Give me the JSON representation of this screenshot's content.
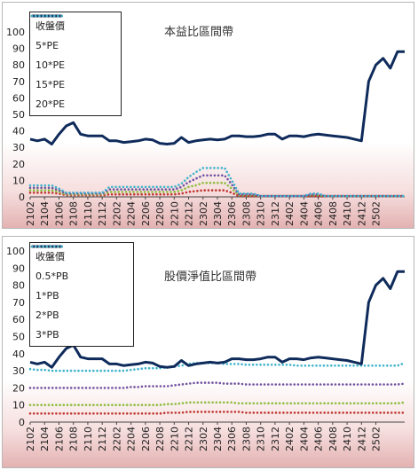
{
  "chart_data": [
    {
      "type": "line",
      "title": "本益比區間帶",
      "x_tick_labels": [
        "2102",
        "2104",
        "2106",
        "2108",
        "2110",
        "2112",
        "2202",
        "2204",
        "2206",
        "2208",
        "2210",
        "2212",
        "2302",
        "2304",
        "2306",
        "2308",
        "2310",
        "2312",
        "2402",
        "2404",
        "2406",
        "2408",
        "2410",
        "2412",
        "2502"
      ],
      "ylim": [
        0,
        100
      ],
      "y_ticks": [
        0,
        10,
        20,
        30,
        40,
        50,
        60,
        70,
        80,
        90,
        100
      ],
      "legend_position": "top-left",
      "series": [
        {
          "name": "收盤價",
          "color": "#0f2b5b",
          "style": "solid",
          "values": [
            35,
            34,
            35,
            32,
            38,
            43,
            45,
            38,
            37,
            37,
            37,
            34,
            34,
            33,
            33.5,
            34,
            35,
            34.5,
            32.5,
            32,
            32.5,
            36,
            33,
            34,
            34.5,
            35,
            34.5,
            35,
            37,
            37,
            36.5,
            36.5,
            37,
            38,
            38,
            35,
            37,
            37,
            36.5,
            37.5,
            38,
            37.5,
            37,
            36.5,
            36,
            35,
            34,
            70,
            80,
            84,
            78,
            88,
            88
          ]
        },
        {
          "name": "5*PE",
          "color": "#c0352f",
          "style": "dotted",
          "values": [
            2.5,
            2.5,
            2.5,
            2.5,
            2,
            1,
            1,
            1,
            1,
            1,
            1,
            1.5,
            1.5,
            1.5,
            1.5,
            1.5,
            1.5,
            1.5,
            1.5,
            1.5,
            1.5,
            2,
            3,
            3.5,
            4,
            4,
            4,
            4,
            2.5,
            0.5,
            0.5,
            0.5,
            0.5,
            0.5,
            0.5,
            0.5,
            0.5,
            0.5,
            0.5,
            0.5,
            0.5,
            0.5,
            0.5,
            0.5,
            0.5,
            0.5,
            0.5,
            0.5,
            0.5,
            0.5,
            0.5,
            0.5,
            0.5
          ]
        },
        {
          "name": "10*PE",
          "color": "#8cbd3f",
          "style": "dotted",
          "values": [
            4,
            4,
            4,
            4,
            3,
            1.5,
            1.5,
            1.5,
            1.5,
            1.5,
            1.5,
            3,
            3,
            3,
            3,
            3,
            3,
            3,
            3,
            3,
            3,
            4,
            6,
            7,
            8.5,
            8.5,
            8.5,
            8.5,
            5,
            1,
            1,
            1,
            0.5,
            0.5,
            0.5,
            0.5,
            0.5,
            0.5,
            0.5,
            1,
            1,
            0.5,
            0.5,
            0.5,
            0.5,
            0.5,
            0.5,
            0.5,
            0.5,
            0.5,
            0.5,
            0.5,
            0.5
          ]
        },
        {
          "name": "15*PE",
          "color": "#7052a0",
          "style": "dotted",
          "values": [
            5.5,
            5.5,
            5.5,
            5.5,
            4,
            2,
            2,
            2,
            2,
            2,
            2,
            4.5,
            4.5,
            4.5,
            4.5,
            4.5,
            4.5,
            4.5,
            4.5,
            4.5,
            4.5,
            6,
            9,
            11,
            13,
            13,
            13,
            13,
            7.5,
            1.5,
            1.5,
            1.5,
            0.5,
            0.5,
            0.5,
            0.5,
            0.5,
            0.5,
            0.5,
            1.5,
            1.5,
            0.5,
            0.5,
            0.5,
            0.5,
            0.5,
            0.5,
            0.5,
            0.5,
            0.5,
            0.5,
            0.5,
            0.5
          ]
        },
        {
          "name": "20*PE",
          "color": "#3fb3cc",
          "style": "dotted",
          "values": [
            7,
            7,
            7,
            7,
            5,
            2.5,
            2.5,
            2.5,
            2.5,
            2.5,
            2.5,
            6,
            6,
            6,
            6,
            6,
            6,
            6,
            6,
            6,
            6,
            8,
            12,
            15,
            17.5,
            17.5,
            17.5,
            17.5,
            10,
            2,
            2,
            2,
            0.5,
            0.5,
            0.5,
            0.5,
            0.5,
            0.5,
            0.5,
            2,
            2,
            0.5,
            0.5,
            0.5,
            0.5,
            0.5,
            0.5,
            0.5,
            0.5,
            0.5,
            0.5,
            0.5,
            0.5
          ]
        }
      ]
    },
    {
      "type": "line",
      "title": "股價淨值比區間帶",
      "x_tick_labels": [
        "2102",
        "2104",
        "2106",
        "2108",
        "2110",
        "2112",
        "2202",
        "2204",
        "2206",
        "2208",
        "2210",
        "2212",
        "2302",
        "2304",
        "2306",
        "2308",
        "2310",
        "2312",
        "2402",
        "2404",
        "2406",
        "2408",
        "2410",
        "2412",
        "2502"
      ],
      "ylim": [
        0,
        100
      ],
      "y_ticks": [
        0,
        10,
        20,
        30,
        40,
        50,
        60,
        70,
        80,
        90,
        100
      ],
      "legend_position": "top-left",
      "series": [
        {
          "name": "收盤價",
          "color": "#0f2b5b",
          "style": "solid",
          "values": [
            35,
            34,
            35,
            32,
            38,
            43,
            45,
            38,
            37,
            37,
            37,
            34,
            34,
            33,
            33.5,
            34,
            35,
            34.5,
            32.5,
            32,
            32.5,
            36,
            33,
            34,
            34.5,
            35,
            34.5,
            35,
            37,
            37,
            36.5,
            36.5,
            37,
            38,
            38,
            35,
            37,
            37,
            36.5,
            37.5,
            38,
            37.5,
            37,
            36.5,
            36,
            35,
            34,
            70,
            80,
            84,
            78,
            88,
            88
          ]
        },
        {
          "name": "0.5*PB",
          "color": "#c0352f",
          "style": "dotted",
          "values": [
            5,
            5,
            5,
            5,
            5,
            5,
            5,
            5,
            5,
            5,
            5,
            5,
            5,
            5,
            5,
            5,
            5,
            5,
            5,
            5.5,
            5.5,
            5.5,
            6,
            6,
            6,
            6,
            6,
            6,
            6,
            6,
            5.5,
            5.5,
            5.5,
            5.5,
            5.5,
            5.5,
            5.5,
            5.5,
            5.5,
            5.5,
            5.5,
            5.5,
            5.5,
            5.5,
            5.5,
            5.5,
            5.5,
            5.5,
            5.5,
            5.5,
            5.5,
            5.5,
            5.5
          ]
        },
        {
          "name": "1*PB",
          "color": "#8cbd3f",
          "style": "dotted",
          "values": [
            10,
            10,
            10,
            10,
            10,
            10,
            10,
            10,
            10,
            10,
            10,
            10,
            10,
            10,
            10,
            10,
            10,
            10,
            10,
            10.5,
            10.5,
            11,
            11.5,
            11.5,
            11.5,
            11.5,
            11.5,
            11.5,
            11.5,
            11,
            11,
            11,
            11,
            11,
            11,
            11,
            11,
            11,
            11,
            11,
            11,
            11,
            11,
            11,
            11,
            11,
            11,
            11,
            11,
            11,
            11,
            11,
            11.5
          ]
        },
        {
          "name": "2*PB",
          "color": "#7052a0",
          "style": "dotted",
          "values": [
            20,
            20,
            20,
            20,
            20,
            20,
            20,
            20,
            20,
            20,
            20,
            20,
            20,
            20,
            20.5,
            20.5,
            21,
            21,
            21,
            21,
            21.5,
            22,
            22.5,
            23,
            23,
            23,
            23,
            22.5,
            22.5,
            22.5,
            22,
            22,
            22,
            22,
            22,
            22,
            22,
            22,
            22,
            22,
            22,
            22,
            22,
            22,
            22,
            22,
            22,
            22,
            22,
            22,
            22,
            22,
            22.5
          ]
        },
        {
          "name": "3*PB",
          "color": "#3fb3cc",
          "style": "dotted",
          "values": [
            31,
            30.5,
            30.5,
            30,
            30,
            30,
            30,
            30,
            30,
            30,
            30,
            30,
            30,
            30,
            30.5,
            31,
            31.5,
            31.5,
            31.5,
            32,
            32.5,
            33,
            34,
            34.5,
            34.5,
            34.5,
            34.5,
            34,
            34,
            34,
            33.5,
            33.5,
            33.5,
            33.5,
            33.5,
            33.5,
            33.5,
            33,
            33,
            33,
            33,
            33,
            33,
            33,
            33,
            33,
            33,
            33,
            33,
            33,
            33,
            33,
            34.5
          ]
        }
      ]
    }
  ]
}
